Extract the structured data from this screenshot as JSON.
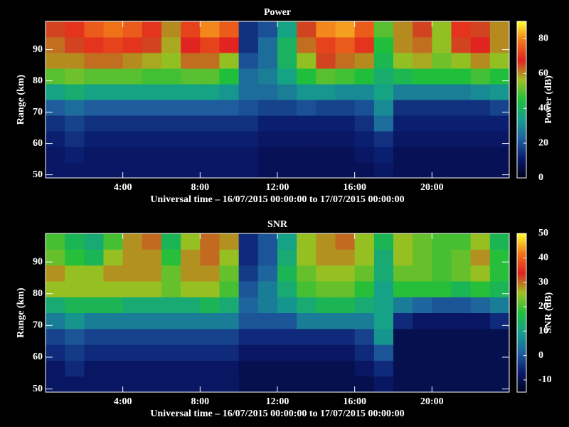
{
  "chart_data": [
    {
      "type": "heatmap",
      "title": "Power",
      "xlabel": "Universal time – 16/07/2015 00:00:00 to 17/07/2015 00:00:00",
      "ylabel": "Range (km)",
      "colorbar_label": "Power (dB)",
      "xlim": [
        0,
        24
      ],
      "ylim": [
        49,
        99
      ],
      "xticks": [
        {
          "value": 4,
          "label": "4:00"
        },
        {
          "value": 8,
          "label": "8:00"
        },
        {
          "value": 12,
          "label": "12:00"
        },
        {
          "value": 16,
          "label": "16:00"
        },
        {
          "value": 20,
          "label": "20:00"
        }
      ],
      "yticks": [
        50,
        60,
        70,
        80,
        90
      ],
      "xbins": [
        0,
        1,
        2,
        3,
        4,
        5,
        6,
        7,
        8,
        9,
        10,
        11,
        12,
        13,
        14,
        15,
        16,
        17,
        18,
        19,
        20,
        21,
        22,
        23,
        24
      ],
      "ybins": [
        49,
        54,
        59,
        64,
        69,
        74,
        79,
        84,
        89,
        94,
        99
      ],
      "zlim": [
        0,
        90
      ],
      "zticks": [
        0,
        20,
        40,
        60,
        80
      ],
      "colormap": [
        "#00001a",
        "#0a1a6e",
        "#1f5fa0",
        "#14a08c",
        "#1fbf3c",
        "#a0c020",
        "#e02020",
        "#f07818",
        "#ffff30"
      ],
      "z": [
        [
          10,
          10,
          10,
          10,
          10,
          10,
          10,
          10,
          10,
          10,
          10,
          8,
          8,
          8,
          8,
          8,
          8,
          10,
          8,
          8,
          8,
          8,
          8,
          8
        ],
        [
          10,
          12,
          10,
          10,
          10,
          10,
          10,
          10,
          10,
          10,
          10,
          8,
          8,
          8,
          8,
          8,
          10,
          12,
          8,
          8,
          8,
          8,
          8,
          8
        ],
        [
          12,
          15,
          12,
          12,
          12,
          12,
          12,
          12,
          12,
          12,
          12,
          10,
          10,
          10,
          10,
          10,
          12,
          15,
          10,
          10,
          10,
          10,
          10,
          10
        ],
        [
          15,
          18,
          15,
          15,
          15,
          15,
          15,
          15,
          15,
          15,
          15,
          12,
          12,
          12,
          12,
          12,
          15,
          25,
          12,
          12,
          12,
          12,
          12,
          12
        ],
        [
          22,
          25,
          22,
          22,
          22,
          22,
          22,
          22,
          22,
          22,
          20,
          18,
          18,
          20,
          18,
          18,
          20,
          30,
          15,
          15,
          15,
          15,
          15,
          18
        ],
        [
          35,
          38,
          35,
          35,
          35,
          35,
          35,
          35,
          35,
          32,
          25,
          25,
          28,
          32,
          32,
          30,
          30,
          35,
          28,
          28,
          28,
          28,
          30,
          32
        ],
        [
          50,
          52,
          50,
          50,
          50,
          48,
          48,
          50,
          50,
          45,
          25,
          28,
          35,
          45,
          50,
          48,
          45,
          38,
          42,
          45,
          45,
          45,
          48,
          45
        ],
        [
          60,
          60,
          62,
          62,
          60,
          58,
          55,
          62,
          62,
          55,
          20,
          25,
          40,
          55,
          65,
          62,
          60,
          42,
          55,
          58,
          52,
          55,
          60,
          55
        ],
        [
          62,
          65,
          70,
          72,
          70,
          65,
          58,
          68,
          72,
          68,
          15,
          25,
          40,
          62,
          72,
          75,
          70,
          45,
          60,
          62,
          55,
          65,
          68,
          60
        ],
        [
          65,
          70,
          75,
          78,
          75,
          70,
          60,
          72,
          80,
          75,
          15,
          20,
          35,
          65,
          80,
          82,
          75,
          50,
          60,
          65,
          55,
          70,
          65,
          60
        ]
      ]
    },
    {
      "type": "heatmap",
      "title": "SNR",
      "xlabel": "Universal time – 16/07/2015 00:00:00 to 17/07/2015 00:00:00",
      "ylabel": "Range (km)",
      "colorbar_label": "SNR (dB)",
      "xlim": [
        0,
        24
      ],
      "ylim": [
        49,
        99
      ],
      "xticks": [
        {
          "value": 4,
          "label": "4:00"
        },
        {
          "value": 8,
          "label": "8:00"
        },
        {
          "value": 12,
          "label": "12:00"
        },
        {
          "value": 16,
          "label": "16:00"
        },
        {
          "value": 20,
          "label": "20:00"
        }
      ],
      "yticks": [
        50,
        60,
        70,
        80,
        90
      ],
      "xbins": [
        0,
        1,
        2,
        3,
        4,
        5,
        6,
        7,
        8,
        9,
        10,
        11,
        12,
        13,
        14,
        15,
        16,
        17,
        18,
        19,
        20,
        21,
        22,
        23,
        24
      ],
      "ybins": [
        49,
        54,
        59,
        64,
        69,
        74,
        79,
        84,
        89,
        94,
        99
      ],
      "zlim": [
        -15,
        50
      ],
      "zticks": [
        -10,
        0,
        10,
        20,
        30,
        40,
        50
      ],
      "colormap": [
        "#00001a",
        "#0a1a6e",
        "#1f5fa0",
        "#14a08c",
        "#1fbf3c",
        "#a0c020",
        "#e02020",
        "#f07818",
        "#ffff30"
      ],
      "z": [
        [
          -8,
          -8,
          -8,
          -8,
          -8,
          -8,
          -8,
          -8,
          -8,
          -8,
          -10,
          -10,
          -10,
          -10,
          -10,
          -10,
          -10,
          -8,
          -10,
          -10,
          -10,
          -10,
          -10,
          -10
        ],
        [
          -8,
          -5,
          -8,
          -8,
          -8,
          -8,
          -8,
          -8,
          -8,
          -8,
          -10,
          -10,
          -10,
          -10,
          -10,
          -10,
          -8,
          -5,
          -10,
          -10,
          -10,
          -10,
          -10,
          -10
        ],
        [
          -5,
          -3,
          -5,
          -5,
          -5,
          -5,
          -5,
          -5,
          -5,
          -5,
          -8,
          -8,
          -8,
          -8,
          -8,
          -8,
          -5,
          0,
          -10,
          -10,
          -10,
          -10,
          -10,
          -10
        ],
        [
          -2,
          0,
          -2,
          -2,
          -2,
          -2,
          -2,
          -2,
          -2,
          -2,
          -5,
          -5,
          -5,
          -5,
          -5,
          -5,
          -2,
          8,
          -10,
          -10,
          -10,
          -10,
          -10,
          -10
        ],
        [
          5,
          8,
          5,
          5,
          5,
          5,
          5,
          5,
          5,
          5,
          0,
          0,
          0,
          5,
          5,
          5,
          5,
          10,
          -5,
          -8,
          -8,
          -8,
          -8,
          -5
        ],
        [
          12,
          15,
          15,
          15,
          12,
          12,
          12,
          12,
          15,
          12,
          2,
          5,
          8,
          12,
          15,
          15,
          12,
          10,
          5,
          2,
          0,
          0,
          2,
          5
        ],
        [
          25,
          25,
          25,
          25,
          25,
          25,
          22,
          25,
          25,
          20,
          0,
          5,
          12,
          20,
          22,
          22,
          18,
          10,
          18,
          18,
          18,
          15,
          18,
          15
        ],
        [
          28,
          25,
          25,
          28,
          28,
          28,
          22,
          28,
          28,
          22,
          -3,
          2,
          15,
          22,
          25,
          25,
          22,
          12,
          22,
          22,
          20,
          22,
          25,
          18
        ],
        [
          22,
          18,
          15,
          25,
          28,
          28,
          18,
          28,
          30,
          25,
          -5,
          0,
          12,
          25,
          28,
          28,
          25,
          12,
          25,
          22,
          20,
          22,
          28,
          18
        ],
        [
          20,
          15,
          12,
          20,
          28,
          30,
          15,
          25,
          30,
          28,
          -5,
          0,
          10,
          25,
          28,
          30,
          25,
          15,
          25,
          22,
          20,
          20,
          25,
          15
        ]
      ]
    }
  ]
}
